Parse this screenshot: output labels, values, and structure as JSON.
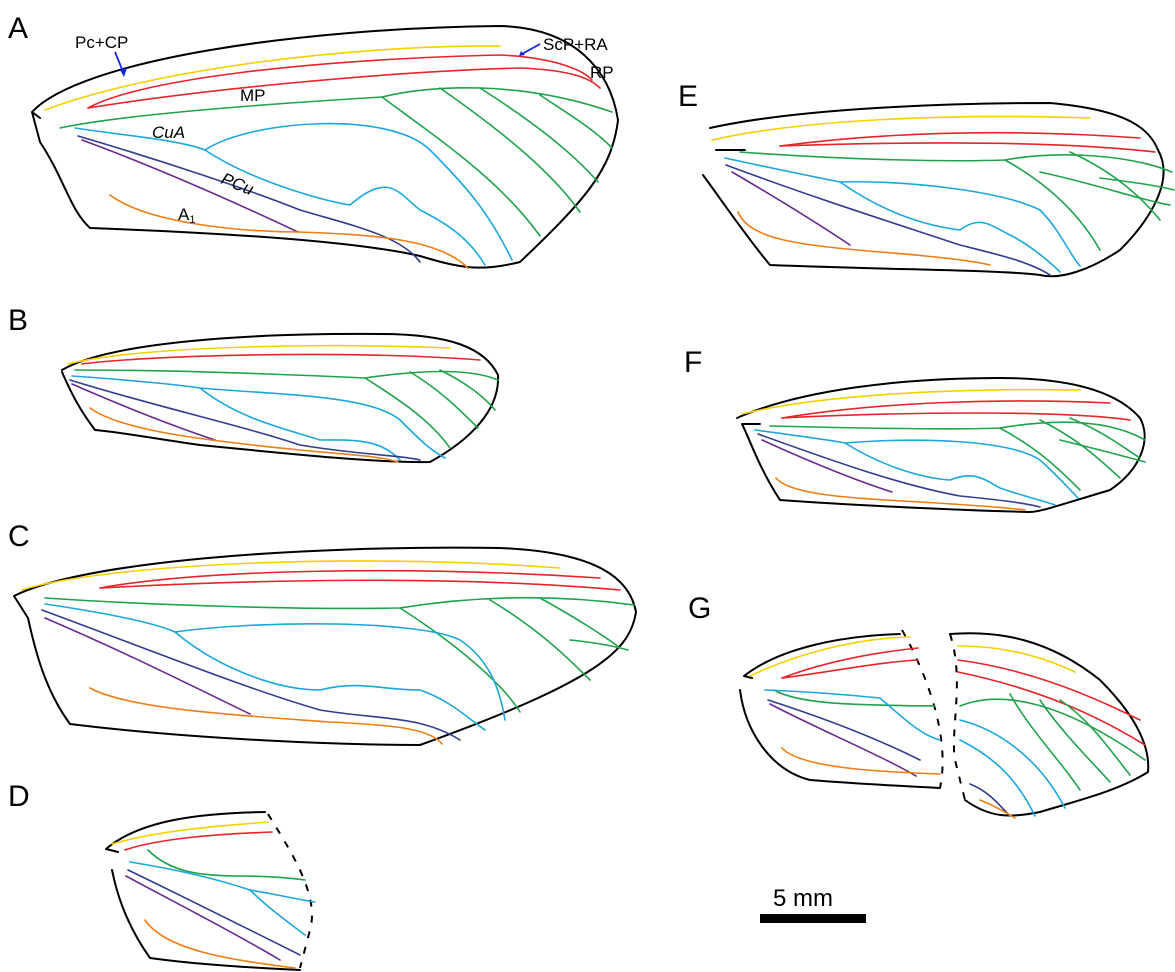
{
  "panels": {
    "a": "A",
    "b": "B",
    "c": "C",
    "d": "D",
    "e": "E",
    "f": "F",
    "g": "G"
  },
  "vein_labels": {
    "pc_cp": "Pc+CP",
    "scp_ra": "ScP+RA",
    "rp": "RP",
    "mp": "MP",
    "cua": "CuA",
    "pcu": "PCu",
    "a1_base": "A",
    "a1_sub": "1"
  },
  "scale_bar": {
    "label": "5 mm"
  },
  "colors": {
    "Pc+CP": "#f5d000",
    "ScP+RA / RP": "#e8232a",
    "MP": "#1fa34a",
    "CuA": "#1aa7dc",
    "CuP": "#2e3e8f",
    "PCu": "#6a2a8e",
    "A1": "#f07d12",
    "arrow": "#1029e0"
  }
}
